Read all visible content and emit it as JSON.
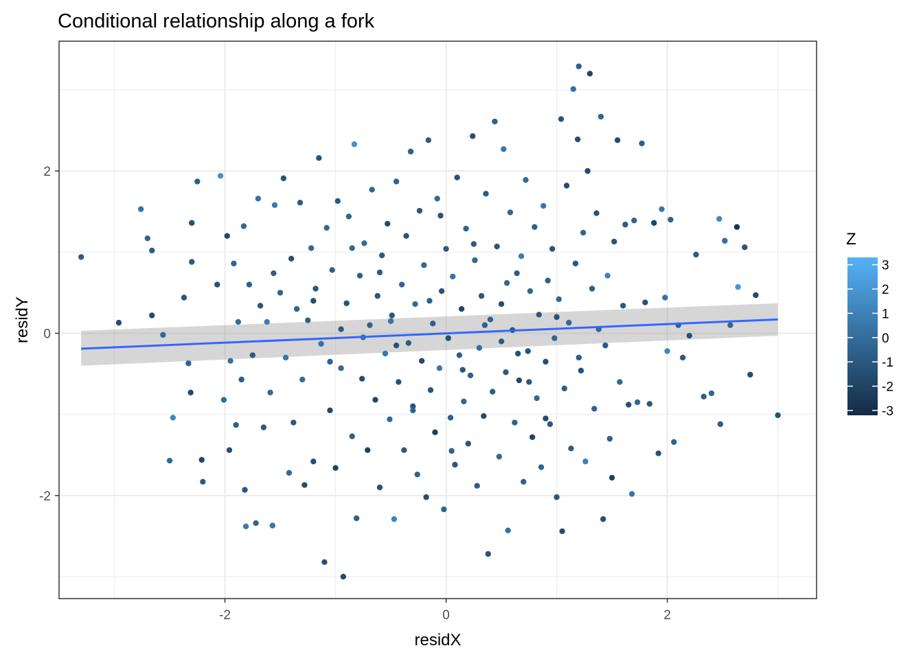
{
  "chart_data": {
    "type": "scatter",
    "title": "Conditional relationship along a fork",
    "xlabel": "residX",
    "ylabel": "residY",
    "xlim": [
      -3.5,
      3.35
    ],
    "ylim": [
      -3.27,
      3.6
    ],
    "x_ticks": [
      {
        "value": -2,
        "label": "-2"
      },
      {
        "value": 0,
        "label": "0"
      },
      {
        "value": 2,
        "label": "2"
      }
    ],
    "y_ticks": [
      {
        "value": -2,
        "label": "-2"
      },
      {
        "value": 0,
        "label": "0"
      },
      {
        "value": 2,
        "label": "2"
      }
    ],
    "x_minor": [
      -3,
      -1,
      1,
      3
    ],
    "y_minor": [
      -3,
      -1,
      1,
      3
    ],
    "grid": true,
    "color_scale": {
      "title": "Z",
      "low": "#132b43",
      "high": "#56b1f7",
      "range": [
        -3.2,
        3.3
      ],
      "ticks": [
        {
          "value": 3,
          "label": "3"
        },
        {
          "value": 2,
          "label": "2"
        },
        {
          "value": 1,
          "label": "1"
        },
        {
          "value": 0,
          "label": "0"
        },
        {
          "value": -1,
          "label": "-1"
        },
        {
          "value": -2,
          "label": "-2"
        },
        {
          "value": -3,
          "label": "-3"
        }
      ],
      "legend_position": "right"
    },
    "regression": {
      "method": "lm",
      "x_range": [
        -3.3,
        3.0
      ],
      "fit_at_ends": [
        -0.19,
        0.17
      ],
      "ci_lower": [
        -0.4,
        -0.03
      ],
      "ci_upper": [
        0.03,
        0.37
      ],
      "line_color": "#3366ff",
      "band_color": "#999999"
    },
    "points": [
      {
        "x": -3.3,
        "y": 0.94,
        "z": -0.8
      },
      {
        "x": -2.96,
        "y": 0.13,
        "z": -1.5
      },
      {
        "x": -2.76,
        "y": 1.53,
        "z": 0.3
      },
      {
        "x": -2.7,
        "y": 1.17,
        "z": -0.4
      },
      {
        "x": -2.66,
        "y": 1.02,
        "z": -0.8
      },
      {
        "x": -2.66,
        "y": 0.22,
        "z": -1.6
      },
      {
        "x": -2.56,
        "y": -0.02,
        "z": -0.3
      },
      {
        "x": -2.5,
        "y": -1.57,
        "z": -0.2
      },
      {
        "x": -2.47,
        "y": -1.04,
        "z": 1.2
      },
      {
        "x": -2.37,
        "y": 0.44,
        "z": -1.1
      },
      {
        "x": -2.33,
        "y": -0.37,
        "z": -0.5
      },
      {
        "x": -2.31,
        "y": -0.73,
        "z": -1.7
      },
      {
        "x": -2.3,
        "y": 0.88,
        "z": -0.9
      },
      {
        "x": -2.3,
        "y": 1.36,
        "z": -1.5
      },
      {
        "x": -2.25,
        "y": 1.87,
        "z": -0.7
      },
      {
        "x": -2.21,
        "y": -1.56,
        "z": -1.8
      },
      {
        "x": -2.2,
        "y": -1.83,
        "z": -0.9
      },
      {
        "x": -2.07,
        "y": 0.6,
        "z": -1.3
      },
      {
        "x": -2.04,
        "y": 1.94,
        "z": 1.8
      },
      {
        "x": -2.01,
        "y": -0.82,
        "z": -0.1
      },
      {
        "x": -1.98,
        "y": 1.2,
        "z": -1.7
      },
      {
        "x": -1.96,
        "y": -1.44,
        "z": -1.5
      },
      {
        "x": -1.95,
        "y": -0.34,
        "z": 0.2
      },
      {
        "x": -1.92,
        "y": 0.86,
        "z": -0.4
      },
      {
        "x": -1.9,
        "y": -1.13,
        "z": -0.6
      },
      {
        "x": -1.88,
        "y": 0.14,
        "z": 0.0
      },
      {
        "x": -1.85,
        "y": -0.57,
        "z": -0.8
      },
      {
        "x": -1.83,
        "y": 1.32,
        "z": -0.2
      },
      {
        "x": -1.82,
        "y": -1.93,
        "z": -1.0
      },
      {
        "x": -1.81,
        "y": -2.38,
        "z": 0.8
      },
      {
        "x": -1.78,
        "y": 0.6,
        "z": -0.6
      },
      {
        "x": -1.75,
        "y": -0.27,
        "z": -0.9
      },
      {
        "x": -1.72,
        "y": -2.34,
        "z": -0.4
      },
      {
        "x": -1.7,
        "y": 1.66,
        "z": 0.2
      },
      {
        "x": -1.68,
        "y": 0.34,
        "z": -1.1
      },
      {
        "x": -1.65,
        "y": -1.16,
        "z": -1.0
      },
      {
        "x": -1.62,
        "y": 0.14,
        "z": 0.8
      },
      {
        "x": -1.59,
        "y": -0.73,
        "z": -0.2
      },
      {
        "x": -1.57,
        "y": -2.37,
        "z": 0.4
      },
      {
        "x": -1.56,
        "y": 0.74,
        "z": -0.7
      },
      {
        "x": -1.55,
        "y": 1.58,
        "z": 0.6
      },
      {
        "x": -1.5,
        "y": 0.5,
        "z": -0.5
      },
      {
        "x": -1.47,
        "y": 1.91,
        "z": -1.2
      },
      {
        "x": -1.45,
        "y": -0.3,
        "z": 0.4
      },
      {
        "x": -1.42,
        "y": -1.72,
        "z": -0.3
      },
      {
        "x": -1.4,
        "y": 0.92,
        "z": -1.4
      },
      {
        "x": -1.38,
        "y": -1.1,
        "z": -0.9
      },
      {
        "x": -1.35,
        "y": 0.3,
        "z": -0.4
      },
      {
        "x": -1.32,
        "y": 1.61,
        "z": -0.8
      },
      {
        "x": -1.3,
        "y": -0.57,
        "z": 0.0
      },
      {
        "x": -1.28,
        "y": -1.87,
        "z": -1.6
      },
      {
        "x": -1.25,
        "y": 0.16,
        "z": -0.6
      },
      {
        "x": -1.22,
        "y": 1.05,
        "z": -0.3
      },
      {
        "x": -1.2,
        "y": -1.58,
        "z": -1.5
      },
      {
        "x": -1.18,
        "y": 0.55,
        "z": -1.0
      },
      {
        "x": -1.15,
        "y": 2.16,
        "z": -1.1
      },
      {
        "x": -1.13,
        "y": -0.13,
        "z": 0.2
      },
      {
        "x": -1.1,
        "y": -2.82,
        "z": -1.3
      },
      {
        "x": -1.08,
        "y": 1.3,
        "z": -0.2
      },
      {
        "x": -1.05,
        "y": -0.95,
        "z": -1.8
      },
      {
        "x": -1.03,
        "y": 0.78,
        "z": -0.6
      },
      {
        "x": -1.0,
        "y": -1.66,
        "z": -2.0
      },
      {
        "x": -0.98,
        "y": 1.63,
        "z": -0.9
      },
      {
        "x": -0.95,
        "y": -0.43,
        "z": -0.2
      },
      {
        "x": -0.93,
        "y": -3.0,
        "z": -1.6
      },
      {
        "x": -0.9,
        "y": 0.37,
        "z": -1.2
      },
      {
        "x": -0.88,
        "y": 1.44,
        "z": -0.4
      },
      {
        "x": -0.85,
        "y": -1.27,
        "z": -0.5
      },
      {
        "x": -0.83,
        "y": 2.33,
        "z": 1.7
      },
      {
        "x": -0.81,
        "y": -2.28,
        "z": -0.7
      },
      {
        "x": -0.78,
        "y": 0.71,
        "z": -0.7
      },
      {
        "x": -0.76,
        "y": -0.56,
        "z": -1.5
      },
      {
        "x": -0.74,
        "y": 1.11,
        "z": 0.0
      },
      {
        "x": -0.71,
        "y": -1.44,
        "z": -2.1
      },
      {
        "x": -0.69,
        "y": 0.1,
        "z": -0.6
      },
      {
        "x": -0.67,
        "y": 1.77,
        "z": -0.3
      },
      {
        "x": -0.64,
        "y": -0.82,
        "z": -1.9
      },
      {
        "x": -0.62,
        "y": 0.46,
        "z": -1.1
      },
      {
        "x": -0.6,
        "y": -1.9,
        "z": -1.3
      },
      {
        "x": -0.58,
        "y": 0.96,
        "z": -0.8
      },
      {
        "x": -0.55,
        "y": -0.25,
        "z": 0.5
      },
      {
        "x": -0.53,
        "y": 1.35,
        "z": -1.6
      },
      {
        "x": -0.51,
        "y": -1.06,
        "z": -0.3
      },
      {
        "x": -0.49,
        "y": 0.22,
        "z": -1.0
      },
      {
        "x": -0.47,
        "y": -2.29,
        "z": 1.1
      },
      {
        "x": -0.45,
        "y": 1.87,
        "z": -0.5
      },
      {
        "x": -0.43,
        "y": -0.6,
        "z": -1.3
      },
      {
        "x": -0.4,
        "y": 0.6,
        "z": -0.4
      },
      {
        "x": -0.38,
        "y": -1.44,
        "z": -1.0
      },
      {
        "x": -0.36,
        "y": 1.2,
        "z": -1.4
      },
      {
        "x": -0.34,
        "y": -0.12,
        "z": -0.9
      },
      {
        "x": -0.32,
        "y": 2.24,
        "z": -0.6
      },
      {
        "x": -0.3,
        "y": -0.9,
        "z": -1.2
      },
      {
        "x": -0.28,
        "y": 0.36,
        "z": -0.1
      },
      {
        "x": -0.26,
        "y": -1.74,
        "z": -0.5
      },
      {
        "x": -0.24,
        "y": 1.51,
        "z": -1.0
      },
      {
        "x": -0.22,
        "y": -0.34,
        "z": -1.7
      },
      {
        "x": -0.2,
        "y": 0.84,
        "z": -0.3
      },
      {
        "x": -0.18,
        "y": -2.02,
        "z": -1.5
      },
      {
        "x": -0.16,
        "y": 2.38,
        "z": -0.8
      },
      {
        "x": -0.14,
        "y": -0.7,
        "z": -1.1
      },
      {
        "x": -0.12,
        "y": 0.12,
        "z": -0.7
      },
      {
        "x": -0.1,
        "y": -1.22,
        "z": -2.2
      },
      {
        "x": -0.08,
        "y": 1.66,
        "z": -0.2
      },
      {
        "x": -0.06,
        "y": -0.43,
        "z": 0.6
      },
      {
        "x": -0.04,
        "y": 0.52,
        "z": -1.2
      },
      {
        "x": -0.02,
        "y": -2.17,
        "z": -0.4
      },
      {
        "x": 0.0,
        "y": 1.04,
        "z": -0.9
      },
      {
        "x": 0.02,
        "y": -0.06,
        "z": -1.4
      },
      {
        "x": 0.04,
        "y": -1.04,
        "z": -0.6
      },
      {
        "x": 0.06,
        "y": 0.7,
        "z": 0.3
      },
      {
        "x": 0.08,
        "y": -1.62,
        "z": -1.0
      },
      {
        "x": 0.1,
        "y": 1.92,
        "z": -1.3
      },
      {
        "x": 0.12,
        "y": -0.27,
        "z": -0.7
      },
      {
        "x": 0.14,
        "y": 0.3,
        "z": -1.9
      },
      {
        "x": 0.16,
        "y": -0.84,
        "z": -0.3
      },
      {
        "x": 0.18,
        "y": 1.29,
        "z": -0.5
      },
      {
        "x": 0.2,
        "y": -1.36,
        "z": -1.1
      },
      {
        "x": 0.22,
        "y": -0.52,
        "z": -0.6
      },
      {
        "x": 0.24,
        "y": 2.43,
        "z": -1.4
      },
      {
        "x": 0.26,
        "y": 0.9,
        "z": -0.2
      },
      {
        "x": 0.28,
        "y": -1.88,
        "z": -0.8
      },
      {
        "x": 0.3,
        "y": -0.18,
        "z": 0.1
      },
      {
        "x": 0.32,
        "y": 0.46,
        "z": -1.0
      },
      {
        "x": 0.34,
        "y": -1.02,
        "z": -1.6
      },
      {
        "x": 0.36,
        "y": 1.72,
        "z": -0.9
      },
      {
        "x": 0.38,
        "y": -2.72,
        "z": -1.2
      },
      {
        "x": 0.4,
        "y": 0.17,
        "z": -0.4
      },
      {
        "x": 0.42,
        "y": -0.72,
        "z": -0.7
      },
      {
        "x": 0.44,
        "y": 2.61,
        "z": -0.6
      },
      {
        "x": 0.46,
        "y": 1.07,
        "z": -1.1
      },
      {
        "x": 0.48,
        "y": -1.52,
        "z": -0.2
      },
      {
        "x": 0.5,
        "y": 0.36,
        "z": -1.5
      },
      {
        "x": 0.52,
        "y": 2.27,
        "z": 0.5
      },
      {
        "x": 0.54,
        "y": -0.48,
        "z": -0.9
      },
      {
        "x": 0.56,
        "y": -2.43,
        "z": 0.2
      },
      {
        "x": 0.58,
        "y": 1.49,
        "z": -0.4
      },
      {
        "x": 0.6,
        "y": 0.04,
        "z": -1.3
      },
      {
        "x": 0.62,
        "y": -1.1,
        "z": -0.5
      },
      {
        "x": 0.64,
        "y": 0.74,
        "z": -0.8
      },
      {
        "x": 0.66,
        "y": -0.58,
        "z": -1.6
      },
      {
        "x": 0.68,
        "y": 0.95,
        "z": 0.7
      },
      {
        "x": 0.7,
        "y": -1.83,
        "z": -0.6
      },
      {
        "x": 0.72,
        "y": 1.89,
        "z": -0.1
      },
      {
        "x": 0.74,
        "y": -0.22,
        "z": -1.2
      },
      {
        "x": 0.76,
        "y": 0.52,
        "z": -0.3
      },
      {
        "x": 0.78,
        "y": -1.28,
        "z": -1.9
      },
      {
        "x": 0.8,
        "y": 1.31,
        "z": -0.7
      },
      {
        "x": 0.82,
        "y": -0.8,
        "z": -0.2
      },
      {
        "x": 0.84,
        "y": 0.23,
        "z": -1.0
      },
      {
        "x": 0.86,
        "y": -1.65,
        "z": -0.5
      },
      {
        "x": 0.88,
        "y": 1.57,
        "z": 0.4
      },
      {
        "x": 0.9,
        "y": -0.35,
        "z": -1.4
      },
      {
        "x": 0.92,
        "y": 0.65,
        "z": -0.6
      },
      {
        "x": 0.94,
        "y": -1.12,
        "z": -0.9
      },
      {
        "x": 0.96,
        "y": 1.04,
        "z": -1.3
      },
      {
        "x": 0.98,
        "y": -0.06,
        "z": -0.4
      },
      {
        "x": 1.0,
        "y": -2.02,
        "z": -1.1
      },
      {
        "x": 1.02,
        "y": 0.42,
        "z": -0.3
      },
      {
        "x": 1.04,
        "y": 2.64,
        "z": -1.2
      },
      {
        "x": 1.05,
        "y": -2.44,
        "z": -1.5
      },
      {
        "x": 1.07,
        "y": -0.68,
        "z": -0.7
      },
      {
        "x": 1.09,
        "y": 1.82,
        "z": -1.6
      },
      {
        "x": 1.11,
        "y": 0.13,
        "z": -0.2
      },
      {
        "x": 1.13,
        "y": -1.42,
        "z": -0.8
      },
      {
        "x": 1.15,
        "y": 3.01,
        "z": 0.3
      },
      {
        "x": 1.17,
        "y": 0.86,
        "z": -1.0
      },
      {
        "x": 1.19,
        "y": 2.39,
        "z": -1.4
      },
      {
        "x": 1.2,
        "y": 3.29,
        "z": -0.6
      },
      {
        "x": 1.22,
        "y": -0.46,
        "z": -1.3
      },
      {
        "x": 1.24,
        "y": 1.24,
        "z": -0.4
      },
      {
        "x": 1.26,
        "y": -1.58,
        "z": 0.9
      },
      {
        "x": 1.28,
        "y": 2.0,
        "z": -1.7
      },
      {
        "x": 1.3,
        "y": 3.2,
        "z": -1.8
      },
      {
        "x": 1.32,
        "y": 0.55,
        "z": -0.7
      },
      {
        "x": 1.34,
        "y": -0.93,
        "z": -0.5
      },
      {
        "x": 1.36,
        "y": 1.48,
        "z": -1.1
      },
      {
        "x": 1.38,
        "y": 0.05,
        "z": -0.3
      },
      {
        "x": 1.4,
        "y": 2.67,
        "z": -0.4
      },
      {
        "x": 1.42,
        "y": -2.29,
        "z": -1.5
      },
      {
        "x": 1.44,
        "y": -0.15,
        "z": -0.9
      },
      {
        "x": 1.46,
        "y": 0.71,
        "z": 1.0
      },
      {
        "x": 1.48,
        "y": -1.3,
        "z": -0.6
      },
      {
        "x": 1.5,
        "y": -1.78,
        "z": -2.1
      },
      {
        "x": 1.52,
        "y": 1.13,
        "z": -1.2
      },
      {
        "x": 1.55,
        "y": 2.38,
        "z": -1.6
      },
      {
        "x": 1.57,
        "y": -0.6,
        "z": -0.2
      },
      {
        "x": 1.6,
        "y": 0.34,
        "z": -1.0
      },
      {
        "x": 1.62,
        "y": 1.34,
        "z": -0.8
      },
      {
        "x": 1.65,
        "y": -0.88,
        "z": -1.4
      },
      {
        "x": 1.68,
        "y": -1.98,
        "z": 0.4
      },
      {
        "x": 1.7,
        "y": 1.39,
        "z": -0.5
      },
      {
        "x": 1.73,
        "y": -0.85,
        "z": -0.3
      },
      {
        "x": 1.77,
        "y": 2.34,
        "z": -0.7
      },
      {
        "x": 1.8,
        "y": 0.38,
        "z": -1.3
      },
      {
        "x": 1.84,
        "y": -0.87,
        "z": -1.1
      },
      {
        "x": 1.88,
        "y": 1.36,
        "z": -2.0
      },
      {
        "x": 1.92,
        "y": -1.48,
        "z": -1.2
      },
      {
        "x": 1.95,
        "y": 1.53,
        "z": 0.4
      },
      {
        "x": 1.98,
        "y": 0.44,
        "z": 0.2
      },
      {
        "x": 2.0,
        "y": -0.22,
        "z": 1.3
      },
      {
        "x": 2.03,
        "y": 1.4,
        "z": -0.4
      },
      {
        "x": 2.06,
        "y": -1.34,
        "z": -0.5
      },
      {
        "x": 2.1,
        "y": 0.1,
        "z": -0.6
      },
      {
        "x": 2.14,
        "y": -0.3,
        "z": -1.0
      },
      {
        "x": 2.2,
        "y": -0.03,
        "z": -1.3
      },
      {
        "x": 2.26,
        "y": 0.97,
        "z": -0.8
      },
      {
        "x": 2.33,
        "y": -0.78,
        "z": -0.7
      },
      {
        "x": 2.4,
        "y": -0.74,
        "z": -0.3
      },
      {
        "x": 2.47,
        "y": 1.41,
        "z": 1.4
      },
      {
        "x": 2.48,
        "y": -1.12,
        "z": -0.8
      },
      {
        "x": 2.52,
        "y": 1.14,
        "z": 0.0
      },
      {
        "x": 2.57,
        "y": 0.1,
        "z": -0.2
      },
      {
        "x": 2.63,
        "y": 1.31,
        "z": -2.8
      },
      {
        "x": 2.64,
        "y": 0.57,
        "z": 2.0
      },
      {
        "x": 2.7,
        "y": 1.06,
        "z": -1.1
      },
      {
        "x": 2.75,
        "y": -0.51,
        "z": -1.5
      },
      {
        "x": 2.8,
        "y": 0.47,
        "z": -1.7
      },
      {
        "x": 3.0,
        "y": -1.01,
        "z": -1.3
      },
      {
        "x": -0.95,
        "y": 0.05,
        "z": -1.0
      },
      {
        "x": -0.45,
        "y": -0.15,
        "z": -1.2
      },
      {
        "x": 0.35,
        "y": 0.1,
        "z": -0.7
      },
      {
        "x": 0.65,
        "y": -0.25,
        "z": -1.4
      },
      {
        "x": -0.15,
        "y": 0.4,
        "z": -0.5
      },
      {
        "x": 0.15,
        "y": -0.45,
        "z": -1.1
      },
      {
        "x": -0.6,
        "y": 0.75,
        "z": -0.9
      },
      {
        "x": 0.55,
        "y": 0.62,
        "z": -0.2
      },
      {
        "x": -1.05,
        "y": -0.35,
        "z": -0.6
      },
      {
        "x": 1.0,
        "y": 0.2,
        "z": -1.3
      },
      {
        "x": -0.3,
        "y": -0.95,
        "z": -0.4
      },
      {
        "x": 0.25,
        "y": 1.1,
        "z": -0.8
      },
      {
        "x": -0.75,
        "y": -0.05,
        "z": 0.3
      },
      {
        "x": 0.75,
        "y": -0.6,
        "z": -1.0
      },
      {
        "x": -1.2,
        "y": 0.4,
        "z": -1.5
      },
      {
        "x": 1.2,
        "y": -0.3,
        "z": -0.7
      },
      {
        "x": -0.05,
        "y": 1.45,
        "z": -1.2
      },
      {
        "x": 0.05,
        "y": -1.45,
        "z": -0.5
      },
      {
        "x": -0.85,
        "y": 1.05,
        "z": -0.3
      },
      {
        "x": 0.9,
        "y": -1.05,
        "z": -1.6
      },
      {
        "x": -0.5,
        "y": 0.15,
        "z": 0.4
      },
      {
        "x": 0.5,
        "y": -0.1,
        "z": -0.9
      }
    ]
  }
}
